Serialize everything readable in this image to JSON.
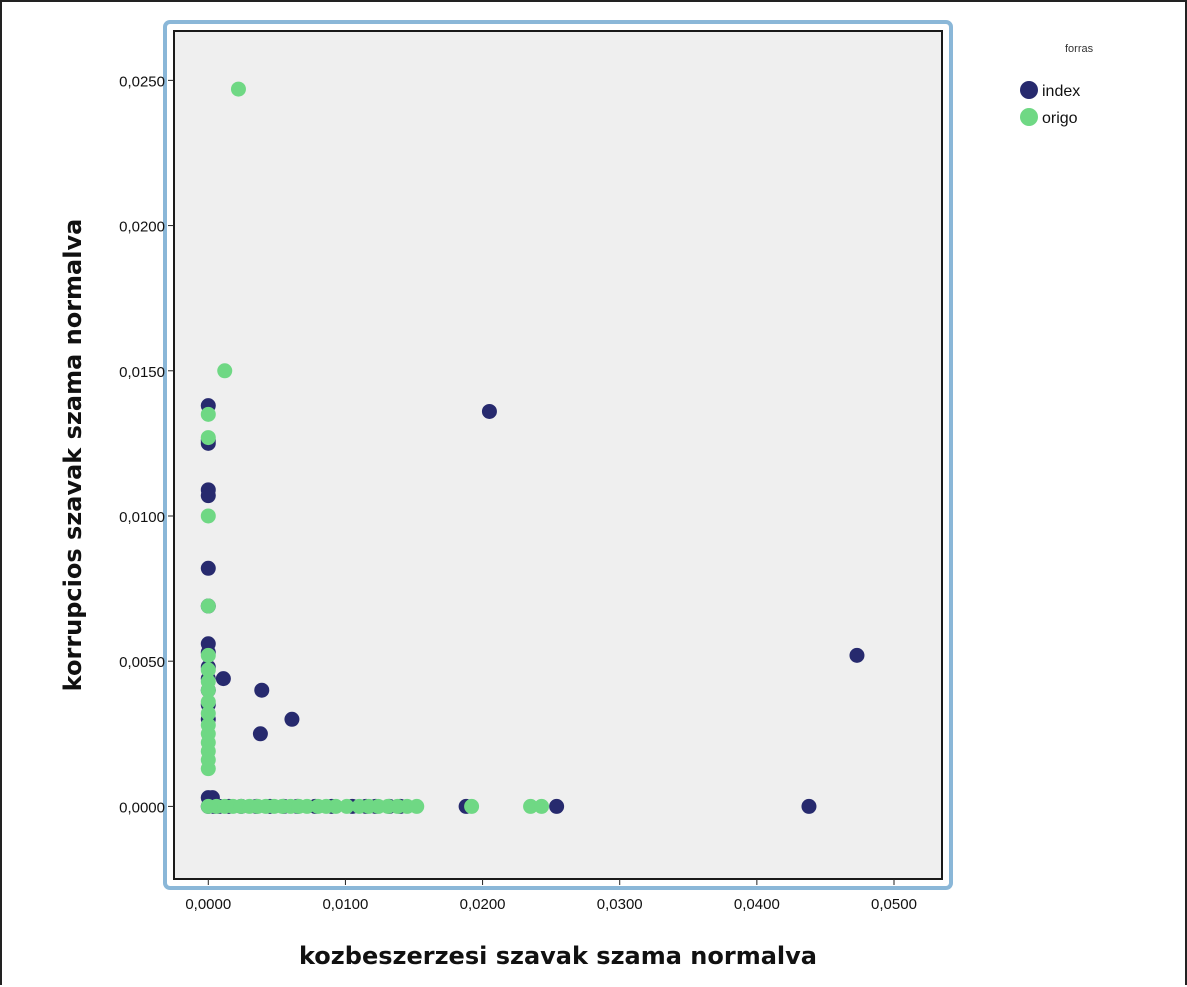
{
  "chart_data": {
    "type": "scatter",
    "xlabel": "kozbeszerzesi szavak szama normalva",
    "ylabel": "korrupcios szavak szama normalva",
    "xlim": [
      -0.0025,
      0.0535
    ],
    "ylim": [
      -0.0025,
      0.0267
    ],
    "xticks": [
      "0,0000",
      "0,0100",
      "0,0200",
      "0,0300",
      "0,0400",
      "0,0500"
    ],
    "yticks": [
      "0,0000",
      "0,0050",
      "0,0100",
      "0,0150",
      "0,0200",
      "0,0250"
    ],
    "xtick_values": [
      0,
      0.01,
      0.02,
      0.03,
      0.04,
      0.05
    ],
    "ytick_values": [
      0,
      0.005,
      0.01,
      0.015,
      0.02,
      0.025
    ],
    "grid": false,
    "plot_background": "#efefef",
    "frame_color": "#8ab7d8",
    "legend": {
      "title": "forras",
      "placement": "top-right",
      "entries": [
        "index",
        "origo"
      ]
    },
    "series": [
      {
        "name": "index",
        "color": "#272a6e",
        "points": [
          [
            0.0,
            0.0138
          ],
          [
            0.0,
            0.0126
          ],
          [
            0.0,
            0.0125
          ],
          [
            0.0,
            0.0109
          ],
          [
            0.0,
            0.0107
          ],
          [
            0.0,
            0.0082
          ],
          [
            0.0,
            0.0069
          ],
          [
            0.0,
            0.0056
          ],
          [
            0.0,
            0.0053
          ],
          [
            0.0,
            0.0048
          ],
          [
            0.0,
            0.0044
          ],
          [
            0.0,
            0.004
          ],
          [
            0.0,
            0.0035
          ],
          [
            0.0,
            0.003
          ],
          [
            0.0,
            0.0003
          ],
          [
            0.0003,
            0.0003
          ],
          [
            0.0011,
            0.0044
          ],
          [
            0.0038,
            0.0025
          ],
          [
            0.0039,
            0.004
          ],
          [
            0.0061,
            0.003
          ],
          [
            0.0205,
            0.0136
          ],
          [
            0.0473,
            0.0052
          ],
          [
            0.0,
            0.0
          ],
          [
            0.0004,
            0.0
          ],
          [
            0.0008,
            0.0
          ],
          [
            0.0015,
            0.0
          ],
          [
            0.0024,
            0.0
          ],
          [
            0.0035,
            0.0
          ],
          [
            0.0045,
            0.0
          ],
          [
            0.0055,
            0.0
          ],
          [
            0.0065,
            0.0
          ],
          [
            0.0078,
            0.0
          ],
          [
            0.009,
            0.0
          ],
          [
            0.0105,
            0.0
          ],
          [
            0.0115,
            0.0
          ],
          [
            0.0122,
            0.0
          ],
          [
            0.0132,
            0.0
          ],
          [
            0.014,
            0.0
          ],
          [
            0.0188,
            0.0
          ],
          [
            0.0254,
            0.0
          ],
          [
            0.0438,
            0.0
          ]
        ]
      },
      {
        "name": "origo",
        "color": "#6fd884",
        "points": [
          [
            0.0022,
            0.0247
          ],
          [
            0.0012,
            0.015
          ],
          [
            0.0,
            0.0135
          ],
          [
            0.0,
            0.0127
          ],
          [
            0.0,
            0.01
          ],
          [
            0.0,
            0.0069
          ],
          [
            0.0,
            0.0052
          ],
          [
            0.0,
            0.0047
          ],
          [
            0.0,
            0.0043
          ],
          [
            0.0,
            0.004
          ],
          [
            0.0,
            0.0036
          ],
          [
            0.0,
            0.0032
          ],
          [
            0.0,
            0.0028
          ],
          [
            0.0,
            0.0025
          ],
          [
            0.0,
            0.0022
          ],
          [
            0.0,
            0.0019
          ],
          [
            0.0,
            0.0016
          ],
          [
            0.0,
            0.0013
          ],
          [
            0.0,
            0.0
          ],
          [
            0.0006,
            0.0
          ],
          [
            0.0012,
            0.0
          ],
          [
            0.0018,
            0.0
          ],
          [
            0.0024,
            0.0
          ],
          [
            0.003,
            0.0
          ],
          [
            0.0036,
            0.0
          ],
          [
            0.0042,
            0.0
          ],
          [
            0.0048,
            0.0
          ],
          [
            0.0054,
            0.0
          ],
          [
            0.006,
            0.0
          ],
          [
            0.0066,
            0.0
          ],
          [
            0.0072,
            0.0
          ],
          [
            0.008,
            0.0
          ],
          [
            0.0086,
            0.0
          ],
          [
            0.0093,
            0.0
          ],
          [
            0.0101,
            0.0
          ],
          [
            0.011,
            0.0
          ],
          [
            0.0117,
            0.0
          ],
          [
            0.0124,
            0.0
          ],
          [
            0.0131,
            0.0
          ],
          [
            0.0138,
            0.0
          ],
          [
            0.0145,
            0.0
          ],
          [
            0.0152,
            0.0
          ],
          [
            0.0192,
            0.0
          ],
          [
            0.0235,
            0.0
          ],
          [
            0.0243,
            0.0
          ]
        ]
      }
    ]
  }
}
